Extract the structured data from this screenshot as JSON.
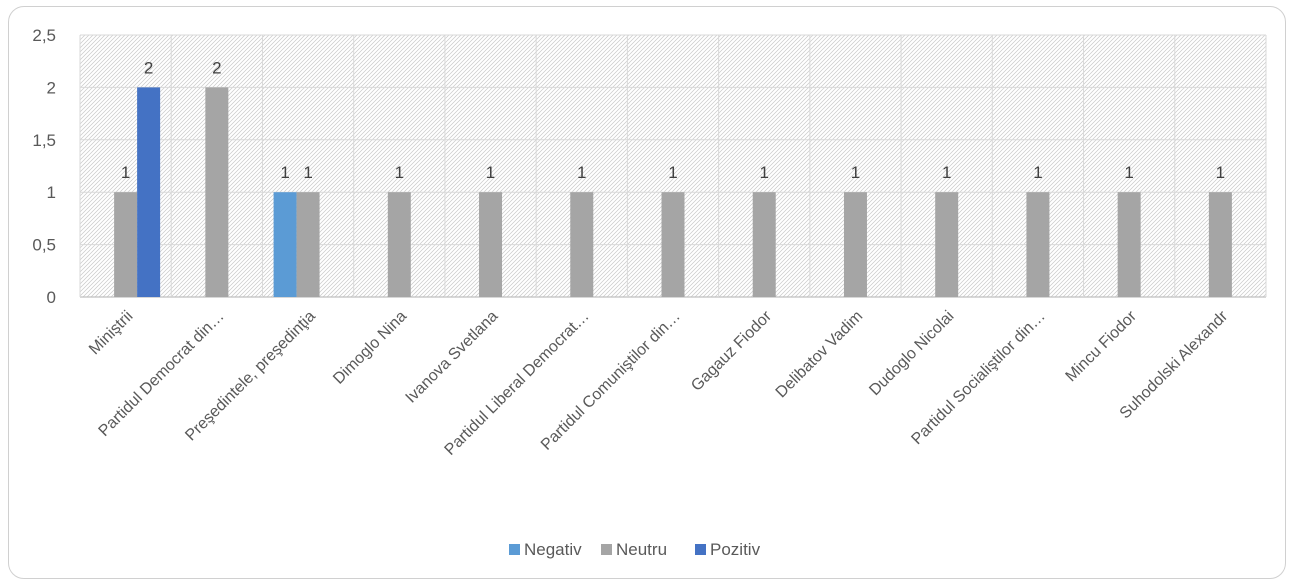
{
  "chart_data": {
    "type": "bar",
    "categories": [
      "Miniştrii",
      "Partidul Democrat din…",
      "Preşedintele, preşedinţia",
      "Dimoglo Nina",
      "Ivanova Svetlana",
      "Partidul Liberal Democrat…",
      "Partidul Comuniştilor din…",
      "Gagauz Fiodor",
      "Delibatov Vadim",
      "Dudoglo Nicolai",
      "Partidul Socialiştilor din…",
      "Mincu Fiodor",
      "Suhodolski Alexandr"
    ],
    "series": [
      {
        "name": "Negativ",
        "color": "#5b9bd5",
        "values": [
          null,
          null,
          1,
          null,
          null,
          null,
          null,
          null,
          null,
          null,
          null,
          null,
          null
        ]
      },
      {
        "name": "Neutru",
        "color": "#a5a5a5",
        "values": [
          1,
          2,
          1,
          1,
          1,
          1,
          1,
          1,
          1,
          1,
          1,
          1,
          1
        ]
      },
      {
        "name": "Pozitiv",
        "color": "#4472c4",
        "values": [
          2,
          null,
          null,
          null,
          null,
          null,
          null,
          null,
          null,
          null,
          null,
          null,
          null
        ]
      }
    ],
    "y_ticks": [
      "0",
      "0,5",
      "1",
      "1,5",
      "2",
      "2,5"
    ],
    "ylim": [
      0,
      2.5
    ],
    "grid": true,
    "legend": "bottom",
    "data_labels": true
  }
}
